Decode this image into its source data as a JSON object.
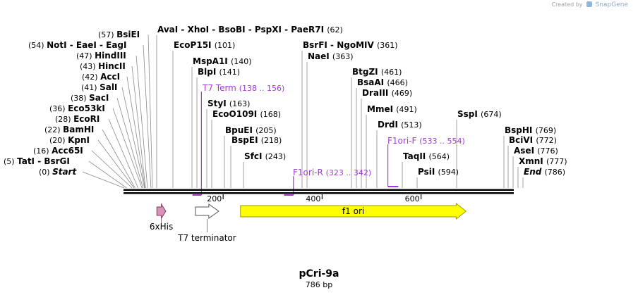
{
  "credit": {
    "prefix": "Created by",
    "brand": "SnapGene"
  },
  "plasmid": {
    "name": "pCri-9a",
    "length_label": "786 bp",
    "length_bp": 786
  },
  "ruler": {
    "ticks": [
      200,
      400,
      600
    ]
  },
  "sites": [
    {
      "name": "Start",
      "pos_label": "(0)",
      "bp": 0,
      "italic": true
    },
    {
      "name": "TatI  -  BsrGI",
      "pos_label": "(5)",
      "bp": 5
    },
    {
      "name": "Acc65I",
      "pos_label": "(16)",
      "bp": 16
    },
    {
      "name": "KpnI",
      "pos_label": "(20)",
      "bp": 20
    },
    {
      "name": "BamHI",
      "pos_label": "(22)",
      "bp": 22
    },
    {
      "name": "EcoRI",
      "pos_label": "(28)",
      "bp": 28
    },
    {
      "name": "Eco53kI",
      "pos_label": "(36)",
      "bp": 36
    },
    {
      "name": "SacI",
      "pos_label": "(38)",
      "bp": 38
    },
    {
      "name": "SalI",
      "pos_label": "(41)",
      "bp": 41
    },
    {
      "name": "AccI",
      "pos_label": "(42)",
      "bp": 42
    },
    {
      "name": "HincII",
      "pos_label": "(43)",
      "bp": 43
    },
    {
      "name": "HindIII",
      "pos_label": "(47)",
      "bp": 47
    },
    {
      "name": "NotI  -  EaeI  -  EagI",
      "pos_label": "(54)",
      "bp": 54
    },
    {
      "name": "BsiEI",
      "pos_label": "(57)",
      "bp": 57
    },
    {
      "name": "AvaI  -  XhoI  -  BsoBI  -  PspXI  -  PaeR7I",
      "pos_label": "(62)",
      "bp": 62
    },
    {
      "name": "EcoP15I",
      "pos_label": "(101)",
      "bp": 101
    },
    {
      "name": "MspA1I",
      "pos_label": "(140)",
      "bp": 140
    },
    {
      "name": "BlpI",
      "pos_label": "(141)",
      "bp": 141
    },
    {
      "name": "StyI",
      "pos_label": "(163)",
      "bp": 163
    },
    {
      "name": "EcoO109I",
      "pos_label": "(168)",
      "bp": 168
    },
    {
      "name": "BpuEI",
      "pos_label": "(205)",
      "bp": 205
    },
    {
      "name": "BspEI",
      "pos_label": "(218)",
      "bp": 218
    },
    {
      "name": "SfcI",
      "pos_label": "(243)",
      "bp": 243
    },
    {
      "name": "BsrFI  -  NgoMIV",
      "pos_label": "(361)",
      "bp": 361
    },
    {
      "name": "NaeI",
      "pos_label": "(363)",
      "bp": 363
    },
    {
      "name": "BtgZI",
      "pos_label": "(461)",
      "bp": 461
    },
    {
      "name": "BsaAI",
      "pos_label": "(466)",
      "bp": 466
    },
    {
      "name": "DraIII",
      "pos_label": "(469)",
      "bp": 469
    },
    {
      "name": "MmeI",
      "pos_label": "(491)",
      "bp": 491
    },
    {
      "name": "DrdI",
      "pos_label": "(513)",
      "bp": 513
    },
    {
      "name": "TaqII",
      "pos_label": "(564)",
      "bp": 564
    },
    {
      "name": "PsiI",
      "pos_label": "(594)",
      "bp": 594
    },
    {
      "name": "SspI",
      "pos_label": "(674)",
      "bp": 674
    },
    {
      "name": "BspHI",
      "pos_label": "(769)",
      "bp": 769
    },
    {
      "name": "BciVI",
      "pos_label": "(772)",
      "bp": 772
    },
    {
      "name": "AseI",
      "pos_label": "(776)",
      "bp": 776
    },
    {
      "name": "XmnI",
      "pos_label": "(777)",
      "bp": 777
    },
    {
      "name": "End",
      "pos_label": "(786)",
      "bp": 786,
      "italic": true
    }
  ],
  "primers": [
    {
      "name": "T7 Term",
      "range_label": "(138 .. 156)",
      "start": 138,
      "end": 156,
      "color": "#a43ad3"
    },
    {
      "name": "F1ori-R",
      "range_label": "(323 .. 342)",
      "start": 323,
      "end": 342,
      "color": "#a43ad3"
    },
    {
      "name": "F1ori-F",
      "range_label": "(533 .. 554)",
      "start": 533,
      "end": 554,
      "color": "#a43ad3"
    }
  ],
  "features": [
    {
      "name": "6xHis",
      "start": 66,
      "end": 84,
      "color": "#d694b7",
      "stroke": "#7a3a5a",
      "label_below": true
    },
    {
      "name": "T7 terminator",
      "start": 144,
      "end": 191,
      "color": "#ffffff",
      "stroke": "#555555",
      "label_below": true
    },
    {
      "name": "f1 ori",
      "start": 235,
      "end": 691,
      "color": "#ffff00",
      "stroke": "#9a9a00",
      "label_below": false
    }
  ]
}
